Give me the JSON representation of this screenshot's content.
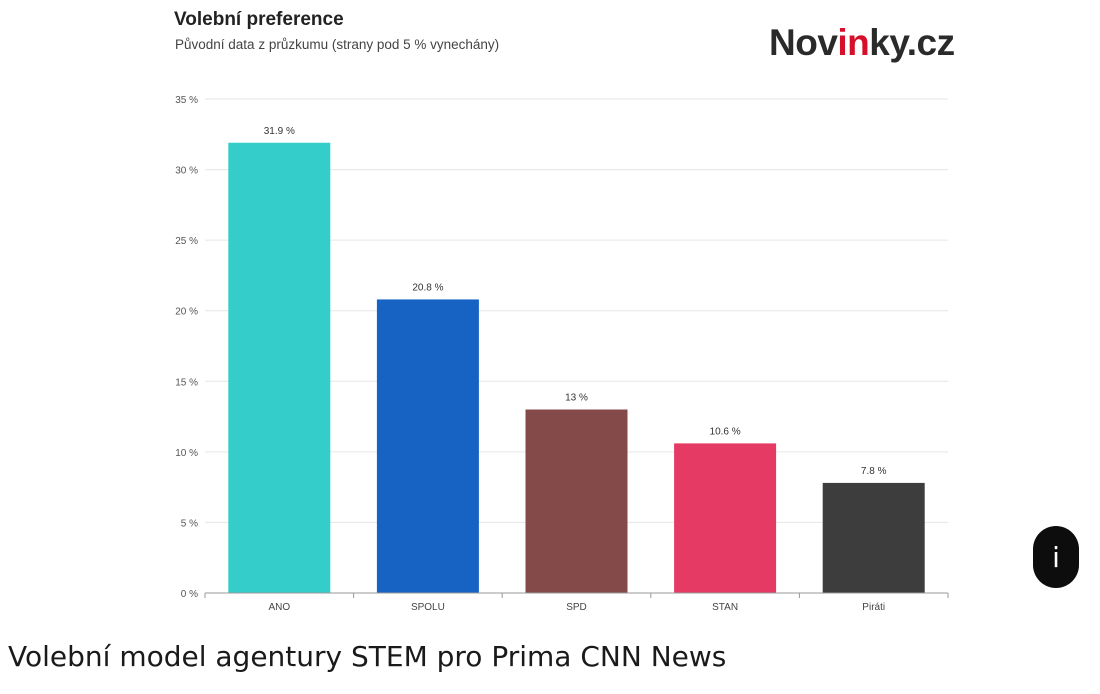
{
  "chart_data": {
    "type": "bar",
    "title": "Volební preference",
    "subtitle": "Původní data z průzkumu (strany pod 5 % vynechány)",
    "categories": [
      "ANO",
      "SPOLU",
      "SPD",
      "STAN",
      "Piráti"
    ],
    "values": [
      31.9,
      20.8,
      13,
      10.6,
      7.8
    ],
    "value_labels": [
      "31.9 %",
      "20.8 %",
      "13 %",
      "10.6 %",
      "7.8 %"
    ],
    "colors": [
      "#35cdc9",
      "#1663c4",
      "#844a4a",
      "#e43a63",
      "#3d3d3d"
    ],
    "ylim": [
      0,
      35
    ],
    "yticks": [
      0,
      5,
      10,
      15,
      20,
      25,
      30,
      35
    ],
    "ytick_labels": [
      "0 %",
      "5 %",
      "10 %",
      "15 %",
      "20 %",
      "25 %",
      "30 %",
      "35 %"
    ],
    "grid": true,
    "xlabel": "",
    "ylabel": ""
  },
  "brand": {
    "prefix": "Nov",
    "highlight": "in",
    "suffix": "ky.cz",
    "highlight_color": "#d6102a"
  },
  "info_button": {
    "label": "i"
  },
  "caption": "Volební model agentury STEM pro Prima CNN News"
}
